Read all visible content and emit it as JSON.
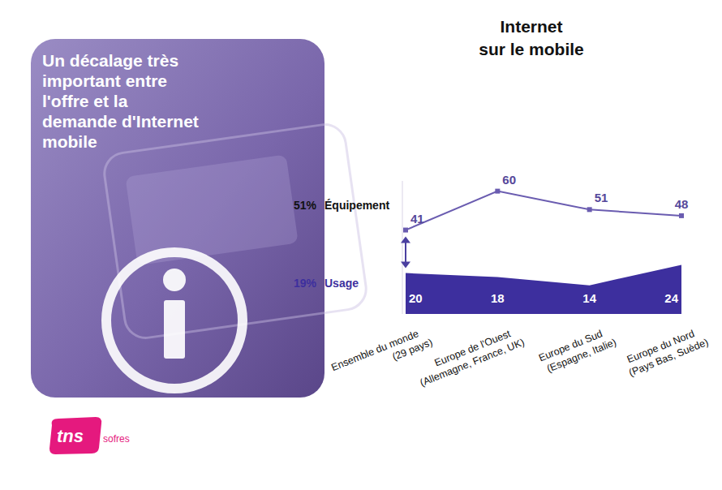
{
  "chart_data": {
    "type": "line",
    "title": "Internet sur le mobile",
    "categories": [
      "Ensemble du monde (29 pays)",
      "Europe de l'Ouest (Allemagne, France, UK)",
      "Europe du Sud (Espagne, Italie)",
      "Europe du Nord (Pays Bas, Suède)"
    ],
    "series": [
      {
        "name": "Équipement",
        "type": "line",
        "marker": "square",
        "color": "#6a5cb0",
        "values": [
          41,
          60,
          51,
          48
        ],
        "summary": {
          "value": 51,
          "label": "51%"
        }
      },
      {
        "name": "Usage",
        "type": "area",
        "color": "#3d2f9e",
        "values": [
          20,
          18,
          14,
          24
        ],
        "summary": {
          "value": 19,
          "label": "19%"
        }
      }
    ],
    "ylim": [
      0,
      65
    ],
    "yticks": [],
    "tick_labels": "x",
    "grid": false,
    "data_labels": true
  },
  "slide": {
    "panel_text": "Un décalage très important entre l'offre et la demande d'Internet mobile",
    "logo": {
      "main": "tns",
      "sub": "sofres"
    }
  }
}
